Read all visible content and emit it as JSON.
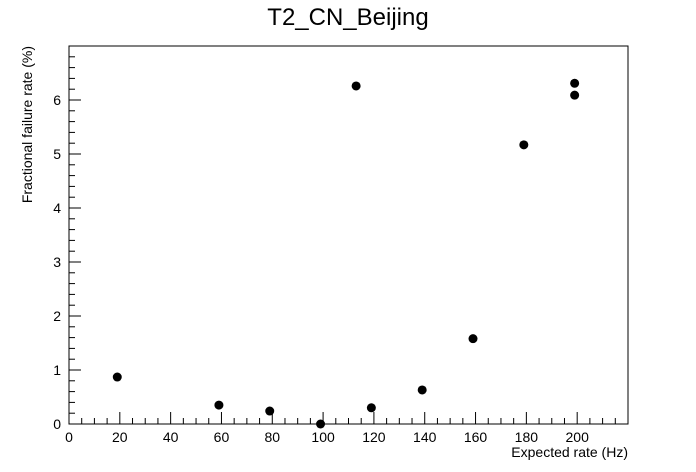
{
  "chart_data": {
    "type": "scatter",
    "title": "T2_CN_Beijing",
    "xlabel": "Expected rate (Hz)",
    "ylabel": "Fractional failure rate (%)",
    "xlim": [
      0,
      220
    ],
    "ylim": [
      0,
      7
    ],
    "x_ticks": [
      0,
      20,
      40,
      60,
      80,
      100,
      120,
      140,
      160,
      180,
      200
    ],
    "y_ticks": [
      0,
      1,
      2,
      3,
      4,
      5,
      6
    ],
    "grid": false,
    "marker_color": "#000000",
    "points": [
      {
        "x": 19,
        "y": 0.87
      },
      {
        "x": 59,
        "y": 0.35
      },
      {
        "x": 79,
        "y": 0.24
      },
      {
        "x": 99,
        "y": 0.0
      },
      {
        "x": 113,
        "y": 6.26
      },
      {
        "x": 119,
        "y": 0.3
      },
      {
        "x": 139,
        "y": 0.63
      },
      {
        "x": 159,
        "y": 1.58
      },
      {
        "x": 179,
        "y": 5.17
      },
      {
        "x": 199,
        "y": 6.31
      },
      {
        "x": 199,
        "y": 6.09
      }
    ]
  }
}
